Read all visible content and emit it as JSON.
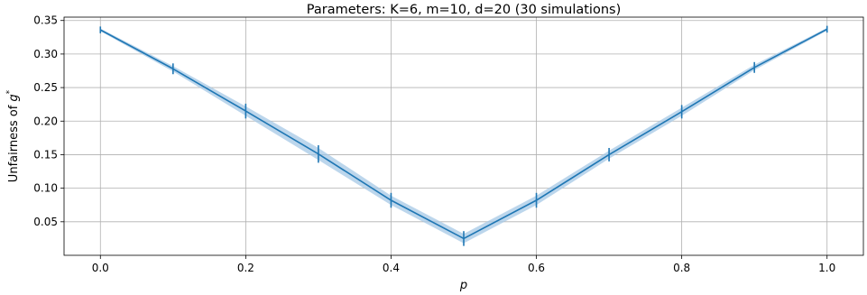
{
  "chart_data": {
    "type": "line",
    "title": "Parameters: K=6, m=10, d=20 (30 simulations)",
    "xlabel": "p",
    "ylabel_text": "Unfairness of ",
    "ylabel_symbol": "g",
    "ylabel_superscript": "*",
    "xlim": [
      -0.05,
      1.05
    ],
    "ylim": [
      0.0,
      0.355
    ],
    "x_ticks": [
      0.0,
      0.2,
      0.4,
      0.6,
      0.8,
      1.0
    ],
    "x_tick_labels": [
      "0.0",
      "0.2",
      "0.4",
      "0.6",
      "0.8",
      "1.0"
    ],
    "y_ticks": [
      0.05,
      0.1,
      0.15,
      0.2,
      0.25,
      0.3,
      0.35
    ],
    "y_tick_labels": [
      "0.05",
      "0.10",
      "0.15",
      "0.20",
      "0.25",
      "0.30",
      "0.35"
    ],
    "grid": true,
    "series": [
      {
        "color": "#1f77b4",
        "band_color": "#a6c8e6",
        "x": [
          0.0,
          0.1,
          0.2,
          0.3,
          0.4,
          0.5,
          0.6,
          0.7,
          0.8,
          0.9,
          1.0
        ],
        "y": [
          0.336,
          0.278,
          0.215,
          0.151,
          0.082,
          0.025,
          0.082,
          0.15,
          0.214,
          0.28,
          0.337
        ],
        "err": [
          0.001,
          0.004,
          0.007,
          0.009,
          0.007,
          0.007,
          0.007,
          0.006,
          0.006,
          0.004,
          0.001
        ],
        "band": [
          0.002,
          0.004,
          0.007,
          0.009,
          0.007,
          0.007,
          0.007,
          0.006,
          0.006,
          0.004,
          0.002
        ]
      }
    ]
  }
}
